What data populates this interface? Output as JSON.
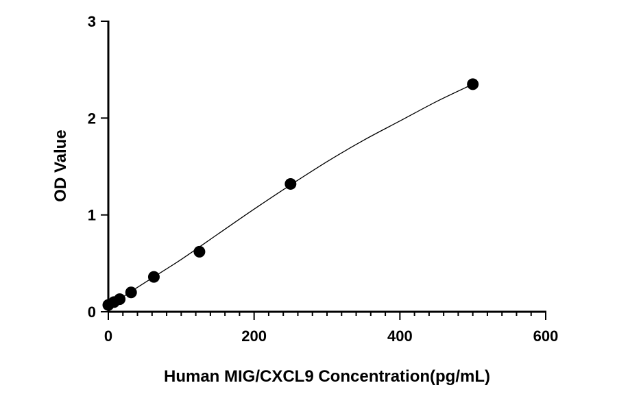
{
  "chart_data": {
    "type": "scatter",
    "xlabel": "Human MIG/CXCL9 Concentration(pg/mL)",
    "ylabel": "OD Value",
    "xlim": [
      0,
      600
    ],
    "ylim": [
      0,
      3
    ],
    "x_ticks": [
      0,
      200,
      400,
      600
    ],
    "y_ticks": [
      0,
      1,
      2,
      3
    ],
    "x_minor_step": 20,
    "grid": false,
    "legend": "none",
    "series": [
      {
        "points": [
          {
            "x": 0,
            "y": 0.07
          },
          {
            "x": 7.8,
            "y": 0.1
          },
          {
            "x": 15.6,
            "y": 0.13
          },
          {
            "x": 31.25,
            "y": 0.2
          },
          {
            "x": 62.5,
            "y": 0.36
          },
          {
            "x": 125,
            "y": 0.62
          },
          {
            "x": 250,
            "y": 1.32
          },
          {
            "x": 500,
            "y": 2.35
          }
        ]
      }
    ],
    "fit_curve": {
      "type": "four-parameter-logistic",
      "curve_points": [
        {
          "x": 0,
          "y": 0.07
        },
        {
          "x": 15.6,
          "y": 0.13
        },
        {
          "x": 31.25,
          "y": 0.21
        },
        {
          "x": 62.5,
          "y": 0.36
        },
        {
          "x": 100,
          "y": 0.54
        },
        {
          "x": 150,
          "y": 0.8
        },
        {
          "x": 200,
          "y": 1.06
        },
        {
          "x": 250,
          "y": 1.31
        },
        {
          "x": 300,
          "y": 1.55
        },
        {
          "x": 350,
          "y": 1.77
        },
        {
          "x": 400,
          "y": 1.97
        },
        {
          "x": 450,
          "y": 2.17
        },
        {
          "x": 500,
          "y": 2.35
        }
      ]
    }
  }
}
